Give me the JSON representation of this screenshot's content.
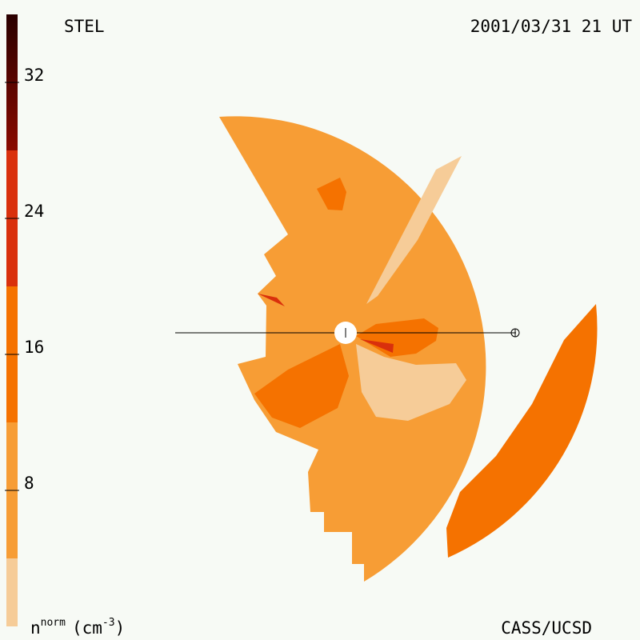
{
  "header": {
    "instrument": "STEL",
    "timestamp": "2001/03/31 21 UT"
  },
  "colorbar": {
    "range": [
      0,
      36
    ],
    "levels": [
      0,
      4,
      12,
      20,
      28,
      36
    ],
    "colors": [
      "#f6cc98",
      "#f79d35",
      "#f57200",
      "#d9300c",
      "#8a0a00"
    ],
    "top_color": "#2a0000",
    "ticks": [
      8,
      16,
      24,
      32
    ],
    "quantity": "n",
    "quantity_sup": "norm",
    "unit_open": "(cm",
    "unit_sup": "-3",
    "unit_close": ")"
  },
  "footer": {
    "credit": "CASS/UCSD"
  }
}
